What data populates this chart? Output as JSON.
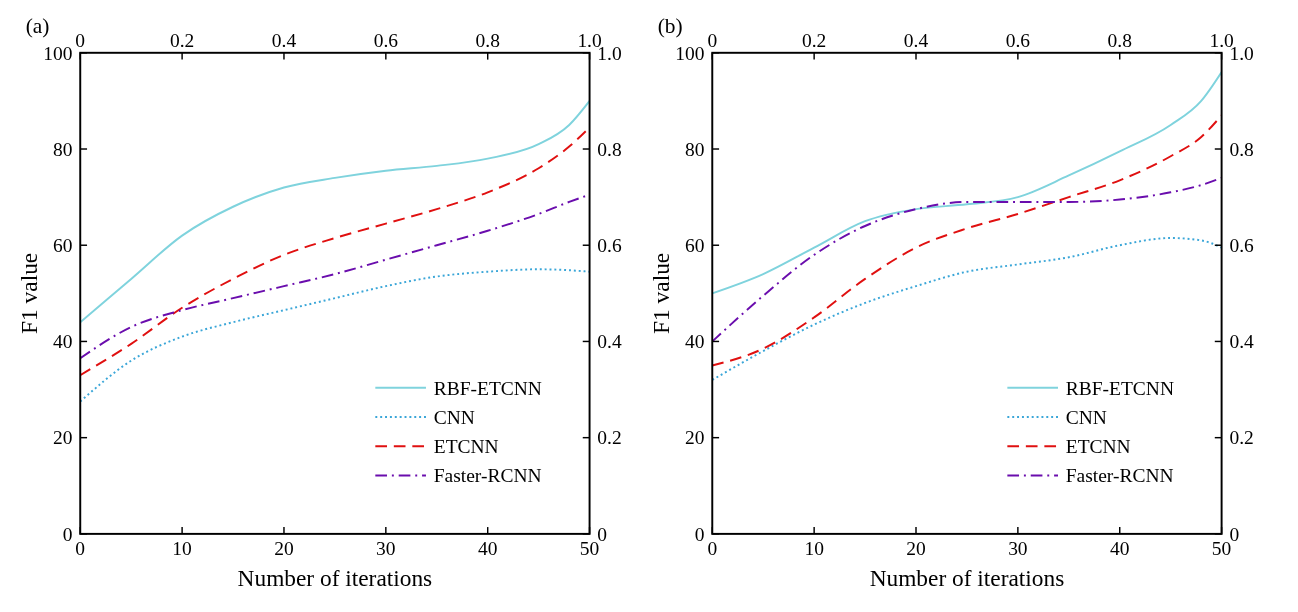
{
  "chart_data": [
    {
      "type": "line",
      "title": "(a)",
      "xlabel": "Number of iterations",
      "ylabel": "F1 value",
      "x": [
        0,
        5,
        10,
        15,
        20,
        25,
        30,
        35,
        40,
        45,
        48,
        50
      ],
      "xlim": [
        0,
        50
      ],
      "xticks": [
        0,
        10,
        20,
        30,
        40,
        50
      ],
      "ylim": [
        0,
        100
      ],
      "yticks": [
        0,
        20,
        40,
        60,
        80,
        100
      ],
      "x2lim": [
        0,
        1
      ],
      "x2ticks": [
        0,
        0.2,
        0.4,
        0.6,
        0.8,
        {
          "value": 1,
          "label": "1.0"
        }
      ],
      "y2lim": [
        0,
        1
      ],
      "y2ticks": [
        0,
        0.2,
        0.4,
        0.6,
        0.8,
        {
          "value": 1,
          "label": "1.0"
        }
      ],
      "legend": "bottom right",
      "grid": false,
      "series": [
        {
          "name": "RBF-ETCNN",
          "color": "#7fd3dd",
          "line_style": "solid",
          "values": [
            44,
            53,
            62,
            68,
            72,
            74,
            75.5,
            76.5,
            78,
            81,
            85,
            90
          ]
        },
        {
          "name": "CNN",
          "color": "#3aa6d8",
          "line_style": "dotted",
          "values": [
            27.5,
            36,
            41,
            44,
            46.5,
            49,
            51.5,
            53.5,
            54.5,
            55,
            54.8,
            54.5
          ]
        },
        {
          "name": "ETCNN",
          "color": "#e01010",
          "line_style": "dashed",
          "values": [
            33,
            39.5,
            47,
            53,
            58,
            61.5,
            64.5,
            67.5,
            71,
            76,
            80.5,
            84.5
          ]
        },
        {
          "name": "Faster-RCNN",
          "color": "#6a0dad",
          "line_style": "dashdot",
          "values": [
            36.5,
            43,
            46.5,
            49,
            51.5,
            54,
            57,
            60,
            63,
            66.5,
            69,
            70.5
          ]
        }
      ]
    },
    {
      "type": "line",
      "title": "(b)",
      "xlabel": "Number of iterations",
      "ylabel": "F1 value",
      "x": [
        0,
        5,
        10,
        15,
        20,
        25,
        30,
        35,
        40,
        45,
        48,
        50
      ],
      "xlim": [
        0,
        50
      ],
      "xticks": [
        0,
        10,
        20,
        30,
        40,
        50
      ],
      "ylim": [
        0,
        100
      ],
      "yticks": [
        0,
        20,
        40,
        60,
        80,
        100
      ],
      "x2lim": [
        0,
        1
      ],
      "x2ticks": [
        0,
        0.2,
        0.4,
        0.6,
        0.8,
        {
          "value": 1,
          "label": "1.0"
        }
      ],
      "y2lim": [
        0,
        1
      ],
      "y2ticks": [
        0,
        0.2,
        0.4,
        0.6,
        0.8,
        {
          "value": 1,
          "label": "1.0"
        }
      ],
      "legend": "bottom right",
      "grid": false,
      "series": [
        {
          "name": "RBF-ETCNN",
          "color": "#7fd3dd",
          "line_style": "solid",
          "values": [
            50,
            54,
            59.5,
            65,
            67.5,
            68.5,
            70,
            74.5,
            79.5,
            85,
            90,
            96
          ]
        },
        {
          "name": "CNN",
          "color": "#3aa6d8",
          "line_style": "dotted",
          "values": [
            32,
            38,
            43.5,
            48,
            51.5,
            54.5,
            56,
            57.5,
            60,
            61.5,
            61,
            59.5
          ]
        },
        {
          "name": "ETCNN",
          "color": "#e01010",
          "line_style": "dashed",
          "values": [
            35,
            38.5,
            45,
            53,
            59.5,
            63.5,
            66.5,
            70,
            73.5,
            78.5,
            82.5,
            87
          ]
        },
        {
          "name": "Faster-RCNN",
          "color": "#6a0dad",
          "line_style": "dashdot",
          "values": [
            40,
            49.5,
            58,
            64,
            67.5,
            69,
            69,
            69,
            69.5,
            71,
            72.5,
            74
          ]
        }
      ]
    }
  ]
}
